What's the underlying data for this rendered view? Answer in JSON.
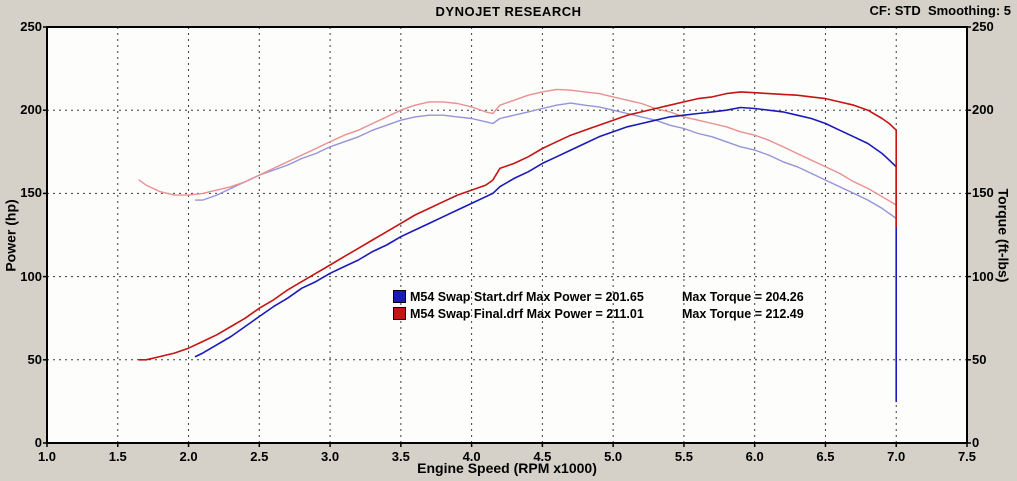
{
  "header": {
    "title": "DYNOJET RESEARCH",
    "settings": "CF: STD  Smoothing: 5"
  },
  "chart_data": {
    "type": "line",
    "title": "DYNOJET RESEARCH",
    "xlabel": "Engine Speed (RPM x1000)",
    "ylabel": "Power (hp)",
    "ylabel_right": "Torque (ft-lbs)",
    "xlim": [
      1.0,
      7.5
    ],
    "ylim": [
      0,
      250
    ],
    "xticks": [
      "1.0",
      "1.5",
      "2.0",
      "2.5",
      "3.0",
      "3.5",
      "4.0",
      "4.5",
      "5.0",
      "5.5",
      "6.0",
      "6.5",
      "7.0",
      "7.5"
    ],
    "yticks": [
      "0",
      "50",
      "100",
      "150",
      "200",
      "250"
    ],
    "grid": true,
    "legend_position": "center",
    "legend": [
      {
        "label": "M54 Swap Start.drf Max Power = 201.65",
        "torque_label": "Max Torque = 204.26",
        "color": "#1a1ab8",
        "max_power": 201.65,
        "max_torque": 204.26
      },
      {
        "label": "M54 Swap Final.drf Max Power = 211.01",
        "torque_label": "Max Torque = 212.49",
        "color": "#c41414",
        "max_power": 211.01,
        "max_torque": 212.49
      }
    ],
    "series": [
      {
        "name": "torque-start",
        "unit": "ft-lbs",
        "color": "#9494da",
        "width": 1.4,
        "points": [
          [
            2.05,
            146
          ],
          [
            2.1,
            146
          ],
          [
            2.2,
            149
          ],
          [
            2.3,
            153
          ],
          [
            2.4,
            157
          ],
          [
            2.5,
            161
          ],
          [
            2.6,
            164
          ],
          [
            2.7,
            167
          ],
          [
            2.8,
            171
          ],
          [
            2.9,
            174
          ],
          [
            3.0,
            178
          ],
          [
            3.1,
            181
          ],
          [
            3.2,
            184
          ],
          [
            3.3,
            188
          ],
          [
            3.4,
            191
          ],
          [
            3.5,
            194
          ],
          [
            3.6,
            196
          ],
          [
            3.7,
            197
          ],
          [
            3.8,
            197
          ],
          [
            3.9,
            196
          ],
          [
            4.0,
            195
          ],
          [
            4.1,
            193
          ],
          [
            4.15,
            192
          ],
          [
            4.2,
            195
          ],
          [
            4.3,
            197
          ],
          [
            4.4,
            199
          ],
          [
            4.5,
            201
          ],
          [
            4.6,
            203
          ],
          [
            4.7,
            204.26
          ],
          [
            4.8,
            203
          ],
          [
            4.9,
            202
          ],
          [
            5.0,
            200
          ],
          [
            5.1,
            198
          ],
          [
            5.2,
            196
          ],
          [
            5.3,
            194
          ],
          [
            5.4,
            191
          ],
          [
            5.5,
            189
          ],
          [
            5.6,
            186
          ],
          [
            5.7,
            184
          ],
          [
            5.8,
            181
          ],
          [
            5.9,
            178
          ],
          [
            6.0,
            176
          ],
          [
            6.1,
            173
          ],
          [
            6.2,
            169
          ],
          [
            6.3,
            166
          ],
          [
            6.4,
            162
          ],
          [
            6.5,
            158
          ],
          [
            6.6,
            154
          ],
          [
            6.7,
            150
          ],
          [
            6.8,
            146
          ],
          [
            6.9,
            141
          ],
          [
            7.0,
            135
          ],
          [
            7.0,
            124
          ]
        ]
      },
      {
        "name": "torque-final",
        "unit": "ft-lbs",
        "color": "#e89090",
        "width": 1.4,
        "points": [
          [
            1.65,
            158
          ],
          [
            1.7,
            155
          ],
          [
            1.8,
            151
          ],
          [
            1.9,
            149
          ],
          [
            2.0,
            149
          ],
          [
            2.1,
            150
          ],
          [
            2.2,
            152
          ],
          [
            2.3,
            154
          ],
          [
            2.4,
            157
          ],
          [
            2.5,
            161
          ],
          [
            2.6,
            165
          ],
          [
            2.7,
            169
          ],
          [
            2.8,
            173
          ],
          [
            2.9,
            177
          ],
          [
            3.0,
            181
          ],
          [
            3.1,
            185
          ],
          [
            3.2,
            188
          ],
          [
            3.3,
            192
          ],
          [
            3.4,
            196
          ],
          [
            3.5,
            200
          ],
          [
            3.6,
            203
          ],
          [
            3.7,
            205
          ],
          [
            3.8,
            205
          ],
          [
            3.9,
            204
          ],
          [
            4.0,
            202
          ],
          [
            4.1,
            199
          ],
          [
            4.15,
            198
          ],
          [
            4.2,
            203
          ],
          [
            4.3,
            206
          ],
          [
            4.4,
            209
          ],
          [
            4.5,
            211
          ],
          [
            4.6,
            212.49
          ],
          [
            4.7,
            212
          ],
          [
            4.8,
            211
          ],
          [
            4.9,
            210
          ],
          [
            5.0,
            208
          ],
          [
            5.1,
            206
          ],
          [
            5.2,
            204
          ],
          [
            5.3,
            201
          ],
          [
            5.4,
            199
          ],
          [
            5.5,
            196
          ],
          [
            5.6,
            194
          ],
          [
            5.7,
            192
          ],
          [
            5.8,
            190
          ],
          [
            5.9,
            187
          ],
          [
            6.0,
            185
          ],
          [
            6.1,
            182
          ],
          [
            6.2,
            178
          ],
          [
            6.3,
            174
          ],
          [
            6.4,
            170
          ],
          [
            6.5,
            166
          ],
          [
            6.6,
            162
          ],
          [
            6.7,
            157
          ],
          [
            6.8,
            153
          ],
          [
            6.9,
            148
          ],
          [
            7.0,
            143
          ],
          [
            7.0,
            131
          ]
        ]
      },
      {
        "name": "power-start",
        "unit": "hp",
        "color": "#1a1ab8",
        "width": 1.6,
        "points": [
          [
            2.05,
            52
          ],
          [
            2.1,
            54
          ],
          [
            2.2,
            59
          ],
          [
            2.3,
            64
          ],
          [
            2.4,
            70
          ],
          [
            2.5,
            76
          ],
          [
            2.6,
            82
          ],
          [
            2.7,
            87
          ],
          [
            2.8,
            93
          ],
          [
            2.9,
            97
          ],
          [
            3.0,
            102
          ],
          [
            3.1,
            106
          ],
          [
            3.2,
            110
          ],
          [
            3.3,
            115
          ],
          [
            3.4,
            119
          ],
          [
            3.5,
            124
          ],
          [
            3.6,
            128
          ],
          [
            3.7,
            132
          ],
          [
            3.8,
            136
          ],
          [
            3.9,
            140
          ],
          [
            4.0,
            144
          ],
          [
            4.1,
            148
          ],
          [
            4.15,
            150
          ],
          [
            4.2,
            154
          ],
          [
            4.3,
            159
          ],
          [
            4.4,
            163
          ],
          [
            4.5,
            168
          ],
          [
            4.6,
            172
          ],
          [
            4.7,
            176
          ],
          [
            4.8,
            180
          ],
          [
            4.9,
            184
          ],
          [
            5.0,
            187
          ],
          [
            5.1,
            190
          ],
          [
            5.2,
            192
          ],
          [
            5.3,
            194
          ],
          [
            5.4,
            196
          ],
          [
            5.5,
            197
          ],
          [
            5.6,
            198
          ],
          [
            5.7,
            199
          ],
          [
            5.8,
            200
          ],
          [
            5.9,
            201.65
          ],
          [
            6.0,
            201
          ],
          [
            6.1,
            200
          ],
          [
            6.2,
            199
          ],
          [
            6.3,
            197
          ],
          [
            6.4,
            195
          ],
          [
            6.5,
            192
          ],
          [
            6.6,
            188
          ],
          [
            6.7,
            184
          ],
          [
            6.8,
            180
          ],
          [
            6.9,
            174
          ],
          [
            6.95,
            170
          ],
          [
            7.0,
            166
          ],
          [
            7.0,
            25
          ]
        ]
      },
      {
        "name": "power-final",
        "unit": "hp",
        "color": "#c41414",
        "width": 1.6,
        "points": [
          [
            1.65,
            50
          ],
          [
            1.7,
            50
          ],
          [
            1.8,
            52
          ],
          [
            1.9,
            54
          ],
          [
            2.0,
            57
          ],
          [
            2.1,
            61
          ],
          [
            2.2,
            65
          ],
          [
            2.3,
            70
          ],
          [
            2.4,
            75
          ],
          [
            2.5,
            81
          ],
          [
            2.6,
            86
          ],
          [
            2.7,
            92
          ],
          [
            2.8,
            97
          ],
          [
            2.9,
            102
          ],
          [
            3.0,
            107
          ],
          [
            3.1,
            112
          ],
          [
            3.2,
            117
          ],
          [
            3.3,
            122
          ],
          [
            3.4,
            127
          ],
          [
            3.5,
            132
          ],
          [
            3.6,
            137
          ],
          [
            3.7,
            141
          ],
          [
            3.8,
            145
          ],
          [
            3.9,
            149
          ],
          [
            4.0,
            152
          ],
          [
            4.1,
            155
          ],
          [
            4.15,
            158
          ],
          [
            4.2,
            165
          ],
          [
            4.3,
            168
          ],
          [
            4.4,
            172
          ],
          [
            4.5,
            177
          ],
          [
            4.6,
            181
          ],
          [
            4.7,
            185
          ],
          [
            4.8,
            188
          ],
          [
            4.9,
            191
          ],
          [
            5.0,
            194
          ],
          [
            5.1,
            197
          ],
          [
            5.2,
            199
          ],
          [
            5.3,
            201
          ],
          [
            5.4,
            203
          ],
          [
            5.5,
            205
          ],
          [
            5.6,
            207
          ],
          [
            5.7,
            208
          ],
          [
            5.8,
            210
          ],
          [
            5.9,
            211.01
          ],
          [
            6.0,
            210.5
          ],
          [
            6.1,
            210
          ],
          [
            6.2,
            209.5
          ],
          [
            6.3,
            209
          ],
          [
            6.4,
            208
          ],
          [
            6.5,
            207
          ],
          [
            6.6,
            205
          ],
          [
            6.7,
            203
          ],
          [
            6.8,
            200
          ],
          [
            6.9,
            195
          ],
          [
            6.95,
            192
          ],
          [
            7.0,
            188
          ],
          [
            7.0,
            130
          ]
        ]
      }
    ]
  }
}
